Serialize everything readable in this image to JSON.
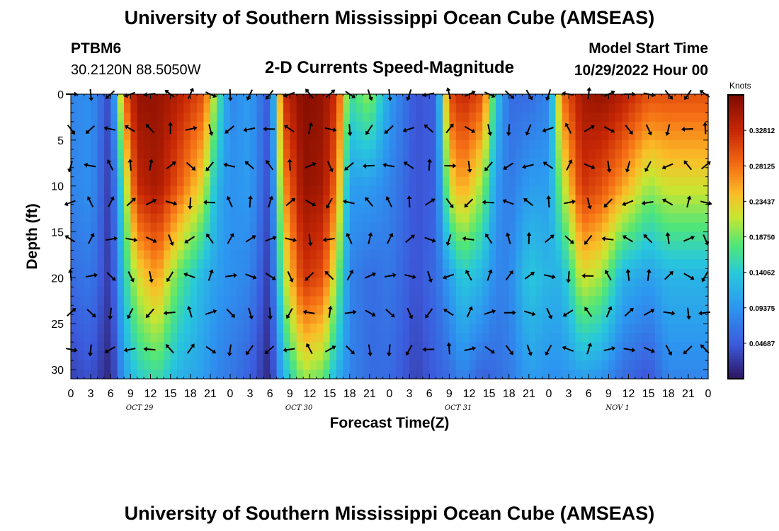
{
  "page": {
    "title": "University of Southern Mississippi Ocean Cube (AMSEAS)",
    "station": "PTBM6",
    "coordinates": "30.2120N  88.5050W",
    "subtitle": "2-D Currents Speed-Magnitude",
    "model_start_label": "Model Start Time",
    "model_start_value": "10/29/2022 Hour 00",
    "footer_title": "University of Southern Mississippi Ocean Cube (AMSEAS)"
  },
  "chart_data": {
    "type": "heatmap",
    "title": "2-D Currents Speed-Magnitude",
    "xlabel": "Forecast Time(Z)",
    "ylabel": "Depth (ft)",
    "x_range_hours": [
      0,
      96
    ],
    "y_range_ft": [
      0,
      31
    ],
    "y_inverted": true,
    "x_tick_labels": [
      "0",
      "3",
      "6",
      "9",
      "12",
      "15",
      "18",
      "21",
      "0",
      "3",
      "6",
      "9",
      "12",
      "15",
      "18",
      "21",
      "0",
      "3",
      "6",
      "9",
      "12",
      "15",
      "18",
      "21",
      "0",
      "3",
      "6",
      "9",
      "12",
      "15",
      "18",
      "21",
      "0"
    ],
    "y_ticks": [
      0,
      5,
      10,
      15,
      20,
      25,
      30
    ],
    "date_labels": [
      {
        "text": "OCT 29",
        "hour": 11
      },
      {
        "text": "OCT 30",
        "hour": 35
      },
      {
        "text": "OCT 31",
        "hour": 59
      },
      {
        "text": "NOV 1",
        "hour": 83
      }
    ],
    "colorbar": {
      "unit": "Knots",
      "ticks": [
        "0.32812",
        "0.28125",
        "0.23437",
        "0.18750",
        "0.14062",
        "0.09375",
        "0.04687"
      ],
      "min": 0.0,
      "max": 0.375
    },
    "arrow_depths_ft": [
      0,
      3.8,
      7.8,
      11.8,
      15.8,
      19.8,
      23.8,
      27.8
    ],
    "speed_profile_knots": [
      [
        0,
        0.08,
        0.08,
        0.06,
        0.03
      ],
      [
        3,
        0.09,
        0.09,
        0.07,
        0.04
      ],
      [
        6,
        0.03,
        0.02,
        0.02,
        0.01
      ],
      [
        8,
        0.28,
        0.18,
        0.14,
        0.1
      ],
      [
        10,
        0.36,
        0.33,
        0.22,
        0.14
      ],
      [
        13,
        0.36,
        0.35,
        0.26,
        0.16
      ],
      [
        16,
        0.34,
        0.3,
        0.18,
        0.12
      ],
      [
        20,
        0.3,
        0.22,
        0.12,
        0.1
      ],
      [
        22,
        0.18,
        0.12,
        0.1,
        0.08
      ],
      [
        24,
        0.08,
        0.09,
        0.09,
        0.07
      ],
      [
        27,
        0.1,
        0.1,
        0.08,
        0.05
      ],
      [
        30,
        0.04,
        0.03,
        0.02,
        0.01
      ],
      [
        32,
        0.32,
        0.26,
        0.2,
        0.12
      ],
      [
        35,
        0.37,
        0.36,
        0.32,
        0.2
      ],
      [
        38,
        0.36,
        0.35,
        0.3,
        0.18
      ],
      [
        40,
        0.32,
        0.28,
        0.2,
        0.12
      ],
      [
        42,
        0.16,
        0.1,
        0.08,
        0.08
      ],
      [
        45,
        0.2,
        0.1,
        0.06,
        0.06
      ],
      [
        48,
        0.1,
        0.08,
        0.07,
        0.06
      ],
      [
        52,
        0.04,
        0.04,
        0.04,
        0.03
      ],
      [
        55,
        0.05,
        0.05,
        0.06,
        0.05
      ],
      [
        57,
        0.3,
        0.22,
        0.1,
        0.06
      ],
      [
        59,
        0.33,
        0.26,
        0.14,
        0.08
      ],
      [
        62,
        0.3,
        0.2,
        0.12,
        0.05
      ],
      [
        64,
        0.14,
        0.1,
        0.08,
        0.06
      ],
      [
        66,
        0.06,
        0.07,
        0.08,
        0.07
      ],
      [
        69,
        0.06,
        0.1,
        0.14,
        0.1
      ],
      [
        72,
        0.08,
        0.1,
        0.12,
        0.09
      ],
      [
        74,
        0.28,
        0.2,
        0.12,
        0.09
      ],
      [
        77,
        0.35,
        0.32,
        0.22,
        0.1
      ],
      [
        80,
        0.36,
        0.3,
        0.2,
        0.09
      ],
      [
        83,
        0.34,
        0.26,
        0.12,
        0.06
      ],
      [
        87,
        0.3,
        0.2,
        0.1,
        0.04
      ],
      [
        90,
        0.3,
        0.22,
        0.12,
        0.08
      ],
      [
        96,
        0.3,
        0.22,
        0.12,
        0.08
      ]
    ]
  }
}
